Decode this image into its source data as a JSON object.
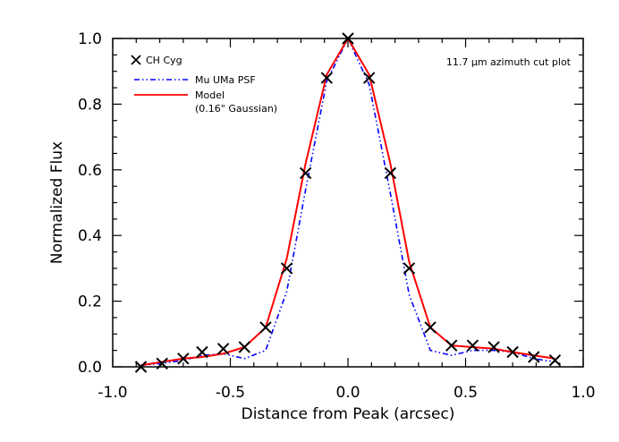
{
  "chart_data": {
    "type": "line",
    "xlabel": "Distance from Peak (arcsec)",
    "ylabel": "Normalized Flux",
    "xlim": [
      -1.0,
      1.0
    ],
    "ylim": [
      0.0,
      1.0
    ],
    "xticks": [
      "-1.0",
      "-0.5",
      "0.0",
      "0.5",
      "1.0"
    ],
    "yticks": [
      "0.0",
      "0.2",
      "0.4",
      "0.6",
      "0.8",
      "1.0"
    ],
    "annotation": "11.7 µm azimuth cut plot",
    "legend_position": "top-left",
    "grid": false,
    "series": [
      {
        "name": "CH Cyg",
        "style": "markers",
        "marker": "x",
        "color": "#000000",
        "x": [
          -0.88,
          -0.79,
          -0.7,
          -0.62,
          -0.53,
          -0.44,
          -0.35,
          -0.26,
          -0.18,
          -0.09,
          0.0,
          0.09,
          0.18,
          0.26,
          0.35,
          0.44,
          0.53,
          0.62,
          0.7,
          0.79,
          0.88
        ],
        "y": [
          0.0,
          0.01,
          0.025,
          0.045,
          0.055,
          0.06,
          0.12,
          0.3,
          0.59,
          0.88,
          1.0,
          0.88,
          0.59,
          0.3,
          0.12,
          0.065,
          0.065,
          0.06,
          0.045,
          0.03,
          0.02
        ]
      },
      {
        "name": "Mu UMa PSF",
        "style": "dash-dot-dot",
        "color": "#0000ff",
        "x": [
          -0.88,
          -0.79,
          -0.7,
          -0.62,
          -0.53,
          -0.44,
          -0.35,
          -0.26,
          -0.18,
          -0.09,
          0.0,
          0.09,
          0.18,
          0.26,
          0.35,
          0.44,
          0.53,
          0.62,
          0.7,
          0.79,
          0.88
        ],
        "y": [
          0.005,
          0.01,
          0.02,
          0.035,
          0.04,
          0.025,
          0.05,
          0.23,
          0.54,
          0.87,
          1.0,
          0.86,
          0.53,
          0.22,
          0.05,
          0.035,
          0.05,
          0.05,
          0.045,
          0.025,
          0.015
        ]
      },
      {
        "name": "Model\n(0.16\" Gaussian)",
        "style": "solid",
        "color": "#ff0000",
        "x": [
          -0.88,
          -0.79,
          -0.7,
          -0.62,
          -0.53,
          -0.44,
          -0.35,
          -0.26,
          -0.18,
          -0.09,
          0.0,
          0.09,
          0.18,
          0.26,
          0.35,
          0.44,
          0.53,
          0.62,
          0.7,
          0.79,
          0.88
        ],
        "y": [
          0.005,
          0.015,
          0.025,
          0.03,
          0.04,
          0.06,
          0.12,
          0.33,
          0.62,
          0.89,
          1.0,
          0.89,
          0.62,
          0.32,
          0.12,
          0.065,
          0.06,
          0.055,
          0.045,
          0.035,
          0.025
        ]
      }
    ],
    "legend": [
      {
        "label": "CH Cyg"
      },
      {
        "label": "Mu UMa PSF"
      },
      {
        "label": "Model"
      },
      {
        "label": "(0.16\" Gaussian)"
      }
    ]
  }
}
